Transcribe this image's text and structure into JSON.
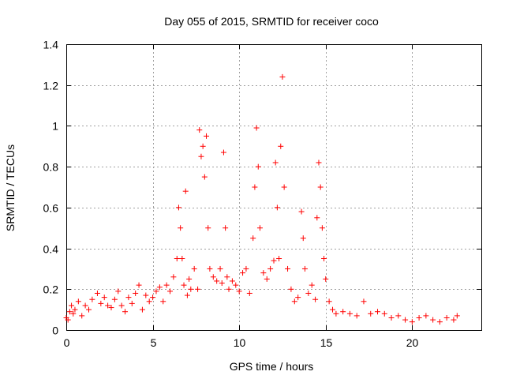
{
  "chart_data": {
    "type": "scatter",
    "title": "Day 055 of 2015, SRMTID for receiver coco",
    "xlabel": "GPS time / hours",
    "ylabel": "SRMTID / TECUs",
    "xlim": [
      0,
      24
    ],
    "ylim": [
      0,
      1.4
    ],
    "xticks": [
      0,
      5,
      10,
      15,
      20
    ],
    "yticks": [
      0,
      0.2,
      0.4,
      0.6,
      0.8,
      1,
      1.2,
      1.4
    ],
    "ytick_labels": [
      "0",
      "0.2",
      "0.4",
      "0.6",
      "0.8",
      "1",
      "1.2",
      "1.4"
    ],
    "grid": true,
    "marker": "+",
    "color": "#ff0000",
    "series": [
      {
        "name": "SRMTID",
        "x": [
          0.0,
          0.1,
          0.2,
          0.3,
          0.4,
          0.5,
          0.7,
          0.9,
          1.1,
          1.3,
          1.5,
          1.8,
          2.0,
          2.2,
          2.4,
          2.6,
          2.8,
          3.0,
          3.2,
          3.4,
          3.6,
          3.8,
          4.0,
          4.2,
          4.4,
          4.6,
          4.8,
          5.0,
          5.2,
          5.4,
          5.6,
          5.8,
          6.0,
          6.2,
          6.4,
          6.5,
          6.6,
          6.7,
          6.8,
          6.9,
          7.0,
          7.1,
          7.2,
          7.4,
          7.6,
          7.7,
          7.8,
          7.9,
          8.0,
          8.1,
          8.2,
          8.3,
          8.5,
          8.7,
          8.9,
          9.0,
          9.1,
          9.2,
          9.3,
          9.4,
          9.6,
          9.8,
          10.0,
          10.2,
          10.4,
          10.6,
          10.8,
          10.9,
          11.0,
          11.1,
          11.2,
          11.4,
          11.6,
          11.8,
          12.0,
          12.1,
          12.2,
          12.3,
          12.4,
          12.5,
          12.6,
          12.8,
          13.0,
          13.2,
          13.4,
          13.6,
          13.7,
          13.8,
          14.0,
          14.2,
          14.4,
          14.5,
          14.6,
          14.7,
          14.8,
          14.9,
          15.0,
          15.2,
          15.4,
          15.6,
          16.0,
          16.4,
          16.8,
          17.2,
          17.6,
          18.0,
          18.4,
          18.8,
          19.2,
          19.6,
          20.0,
          20.4,
          20.8,
          21.2,
          21.6,
          22.0,
          22.4,
          22.6
        ],
        "y": [
          0.06,
          0.05,
          0.09,
          0.12,
          0.08,
          0.1,
          0.14,
          0.07,
          0.12,
          0.1,
          0.15,
          0.18,
          0.13,
          0.16,
          0.12,
          0.11,
          0.15,
          0.19,
          0.12,
          0.09,
          0.16,
          0.13,
          0.18,
          0.22,
          0.1,
          0.17,
          0.14,
          0.16,
          0.19,
          0.21,
          0.14,
          0.22,
          0.19,
          0.26,
          0.35,
          0.6,
          0.5,
          0.35,
          0.22,
          0.68,
          0.17,
          0.25,
          0.2,
          0.3,
          0.2,
          0.98,
          0.85,
          0.9,
          0.75,
          0.95,
          0.5,
          0.3,
          0.26,
          0.24,
          0.3,
          0.23,
          0.87,
          0.5,
          0.26,
          0.2,
          0.24,
          0.22,
          0.19,
          0.28,
          0.3,
          0.18,
          0.45,
          0.7,
          0.99,
          0.8,
          0.5,
          0.28,
          0.25,
          0.3,
          0.34,
          0.82,
          0.6,
          0.35,
          0.9,
          1.24,
          0.7,
          0.3,
          0.2,
          0.14,
          0.16,
          0.58,
          0.45,
          0.3,
          0.18,
          0.22,
          0.15,
          0.55,
          0.82,
          0.7,
          0.5,
          0.35,
          0.25,
          0.14,
          0.1,
          0.08,
          0.09,
          0.08,
          0.07,
          0.14,
          0.08,
          0.09,
          0.08,
          0.06,
          0.07,
          0.05,
          0.04,
          0.06,
          0.07,
          0.05,
          0.04,
          0.06,
          0.05,
          0.07
        ]
      }
    ]
  }
}
